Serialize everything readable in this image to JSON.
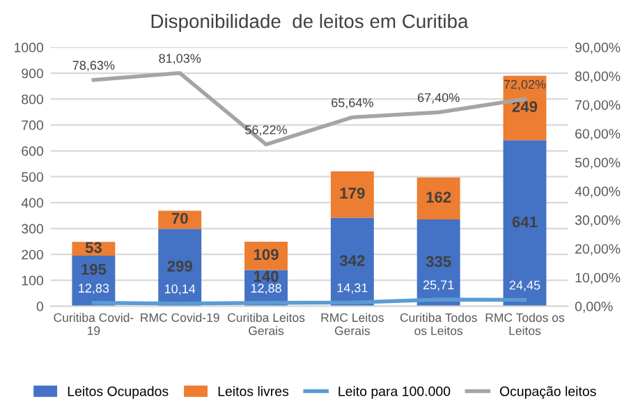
{
  "chart_data": {
    "type": "bar",
    "title": "Disponibilidade  de leitos em Curitiba",
    "stacked": true,
    "categories": [
      "Curitiba Covid-\n19",
      "RMC Covid-19",
      "Curitiba Leitos\nGerais",
      "RMC Leitos\nGerais",
      "Curitiba Todos\nos Leitos",
      "RMC Todos os\nLeitos"
    ],
    "series": [
      {
        "name": "Leitos Ocupados",
        "color": "#4472c4",
        "values": [
          195,
          299,
          140,
          342,
          335,
          641
        ],
        "data_labels": true
      },
      {
        "name": "Leitos livres",
        "color": "#ed7d31",
        "values": [
          53,
          70,
          109,
          179,
          162,
          249
        ],
        "data_labels": true
      },
      {
        "name": "Leito para 100.000",
        "type": "line",
        "color": "#5b9bd5",
        "values": [
          12.83,
          10.14,
          12.88,
          14.31,
          25.71,
          24.45
        ],
        "value_labels": [
          "12,83",
          "10,14",
          "12,88",
          "14,31",
          "25,71",
          "24,45"
        ]
      },
      {
        "name": "Ocupação leitos",
        "type": "line",
        "axis": "y2",
        "color": "#a5a5a5",
        "values": [
          78.63,
          81.03,
          56.22,
          65.64,
          67.4,
          72.02
        ],
        "value_labels": [
          "78,63%",
          "81,03%",
          "56,22%",
          "65,64%",
          "67,40%",
          "72,02%"
        ]
      }
    ],
    "ylim": [
      0,
      1000
    ],
    "yticks": [
      0,
      100,
      200,
      300,
      400,
      500,
      600,
      700,
      800,
      900,
      1000
    ],
    "y2lim": [
      0,
      90
    ],
    "y2ticks": [
      {
        "value": 0,
        "label": "0,00%"
      },
      {
        "value": 10,
        "label": "10,00%"
      },
      {
        "value": 20,
        "label": "20,00%"
      },
      {
        "value": 30,
        "label": "30,00%"
      },
      {
        "value": 40,
        "label": "40,00%"
      },
      {
        "value": 50,
        "label": "50,00%"
      },
      {
        "value": 60,
        "label": "60,00%"
      },
      {
        "value": 70,
        "label": "70,00%"
      },
      {
        "value": 80,
        "label": "80,00%"
      },
      {
        "value": 90,
        "label": "90,00%"
      }
    ],
    "grid": "y",
    "legend": "bottom",
    "marker": "none"
  }
}
